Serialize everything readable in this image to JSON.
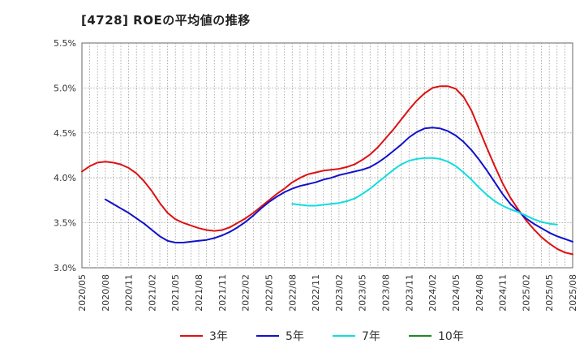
{
  "chart_data": {
    "type": "line",
    "title": "[4728]  ROEの平均値の推移",
    "xlabel": "",
    "ylabel": "",
    "ylim": [
      3.0,
      5.5
    ],
    "yticks": [
      "5.5%",
      "5.0%",
      "4.5%",
      "4.0%",
      "3.5%",
      "3.0%"
    ],
    "ytick_values": [
      5.5,
      5.0,
      4.5,
      4.0,
      3.5,
      3.0
    ],
    "x_tick_labels": [
      "2020/05",
      "2020/08",
      "2020/11",
      "2021/02",
      "2021/05",
      "2021/08",
      "2021/11",
      "2022/02",
      "2022/05",
      "2022/08",
      "2022/11",
      "2023/02",
      "2023/05",
      "2023/08",
      "2023/11",
      "2024/02",
      "2024/05",
      "2024/08",
      "2024/11",
      "2025/02",
      "2025/05",
      "2025/08"
    ],
    "grid": true,
    "legend_position": "bottom",
    "series": [
      {
        "name": "3年",
        "color": "#dd1111",
        "start_index": 0,
        "values": [
          4.07,
          4.13,
          4.17,
          4.18,
          4.17,
          4.15,
          4.11,
          4.05,
          3.96,
          3.85,
          3.72,
          3.61,
          3.54,
          3.5,
          3.47,
          3.44,
          3.42,
          3.41,
          3.42,
          3.45,
          3.5,
          3.55,
          3.61,
          3.68,
          3.75,
          3.82,
          3.88,
          3.95,
          4.0,
          4.04,
          4.06,
          4.08,
          4.09,
          4.1,
          4.12,
          4.15,
          4.2,
          4.26,
          4.34,
          4.44,
          4.54,
          4.65,
          4.76,
          4.86,
          4.94,
          5.0,
          5.02,
          5.02,
          4.99,
          4.9,
          4.75,
          4.54,
          4.33,
          4.13,
          3.94,
          3.78,
          3.65,
          3.53,
          3.43,
          3.34,
          3.27,
          3.21,
          3.17,
          3.15
        ]
      },
      {
        "name": "5年",
        "color": "#1111cc",
        "start_index": 3,
        "values": [
          3.76,
          3.71,
          3.66,
          3.61,
          3.55,
          3.49,
          3.42,
          3.35,
          3.3,
          3.28,
          3.28,
          3.29,
          3.3,
          3.31,
          3.33,
          3.36,
          3.4,
          3.45,
          3.51,
          3.58,
          3.66,
          3.73,
          3.79,
          3.84,
          3.88,
          3.91,
          3.93,
          3.95,
          3.98,
          4.0,
          4.03,
          4.05,
          4.07,
          4.09,
          4.12,
          4.17,
          4.23,
          4.3,
          4.37,
          4.45,
          4.51,
          4.55,
          4.56,
          4.55,
          4.52,
          4.47,
          4.4,
          4.31,
          4.2,
          4.08,
          3.95,
          3.82,
          3.71,
          3.63,
          3.55,
          3.49,
          3.44,
          3.39,
          3.35,
          3.32,
          3.29
        ]
      },
      {
        "name": "7年",
        "color": "#11dddd",
        "start_index": 27,
        "values": [
          3.71,
          3.7,
          3.69,
          3.69,
          3.7,
          3.71,
          3.72,
          3.74,
          3.77,
          3.82,
          3.88,
          3.95,
          4.02,
          4.09,
          4.15,
          4.19,
          4.21,
          4.22,
          4.22,
          4.21,
          4.18,
          4.13,
          4.06,
          3.98,
          3.89,
          3.81,
          3.74,
          3.69,
          3.65,
          3.62,
          3.58,
          3.54,
          3.51,
          3.49,
          3.48
        ]
      },
      {
        "name": "10年",
        "color": "#228822",
        "start_index": 0,
        "values": []
      }
    ]
  }
}
